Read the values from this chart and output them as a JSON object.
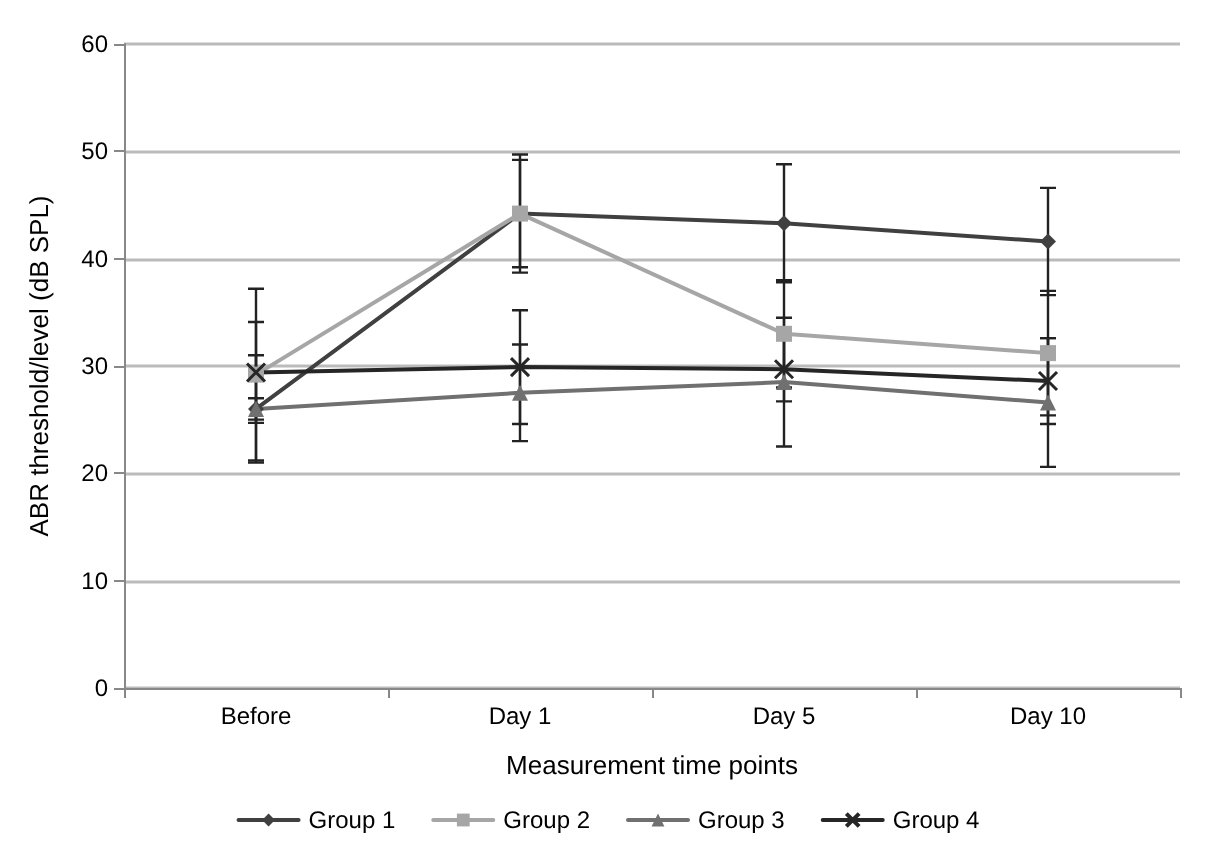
{
  "chart_data": {
    "type": "line",
    "xlabel": "Measurement time points",
    "ylabel": "ABR threshold/level (dB SPL)",
    "categories": [
      "Before",
      "Day 1",
      "Day 5",
      "Day 10"
    ],
    "series": [
      {
        "name": "Group 1",
        "color": "#404040",
        "marker": "diamond",
        "values": [
          26,
          44.2,
          43.3,
          41.6
        ],
        "errors": [
          5,
          5.5,
          5.5,
          5
        ]
      },
      {
        "name": "Group 2",
        "color": "#a6a6a6",
        "marker": "square",
        "values": [
          29.2,
          44.2,
          33,
          31.2
        ],
        "errors": [
          8,
          5,
          5,
          5.8
        ]
      },
      {
        "name": "Group 3",
        "color": "#707070",
        "marker": "triangle",
        "values": [
          26,
          27.5,
          28.5,
          26.6
        ],
        "errors": [
          1,
          4.5,
          6,
          6
        ]
      },
      {
        "name": "Group 4",
        "color": "#262626",
        "marker": "cross",
        "values": [
          29.4,
          29.9,
          29.7,
          28.6
        ],
        "errors": [
          4.7,
          5.3,
          3,
          4
        ]
      }
    ],
    "ylim": [
      0,
      60
    ],
    "yticks": [
      0,
      10,
      20,
      30,
      40,
      50,
      60
    ],
    "grid": "y",
    "legend": "bottom",
    "line_style": "solid"
  }
}
